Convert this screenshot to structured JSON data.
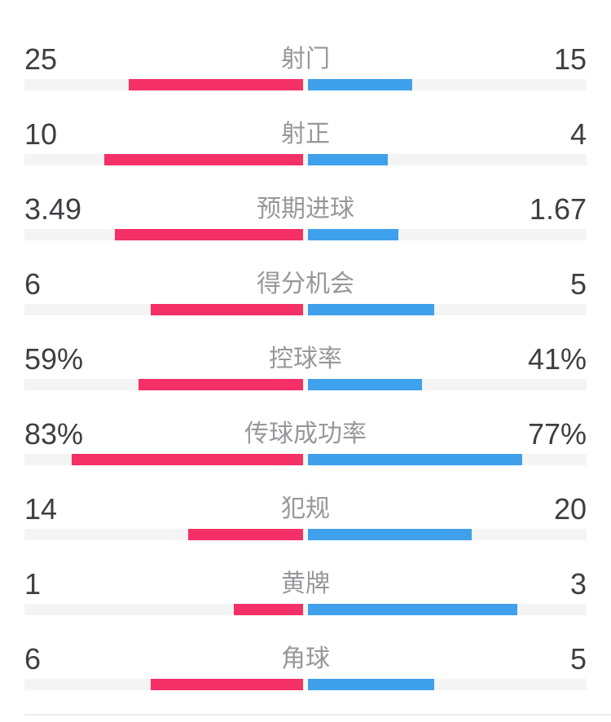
{
  "page": {
    "background": "#ffffff",
    "description": "football match statistics comparison panel"
  },
  "colors": {
    "home_bar": "#f53067",
    "away_bar": "#3fa0ec",
    "track": "#f4f4f5",
    "value_text": "#3e3e43",
    "label_text": "#97979c",
    "divider": "#ededee"
  },
  "chart_data": {
    "type": "bar",
    "orientation": "horizontal-paired",
    "title": "",
    "legend_position": "none",
    "grid": false,
    "categories": [
      "射门",
      "射正",
      "预期进球",
      "得分机会",
      "控球率",
      "传球成功率",
      "犯规",
      "黄牌",
      "角球"
    ],
    "series": [
      {
        "name": "home",
        "color": "#f53067",
        "values": [
          "25",
          "10",
          "3.49",
          "6",
          "59%",
          "83%",
          "14",
          "1",
          "6"
        ]
      },
      {
        "name": "away",
        "color": "#3fa0ec",
        "values": [
          "15",
          "4",
          "1.67",
          "5",
          "41%",
          "77%",
          "20",
          "3",
          "5"
        ]
      }
    ],
    "rows": [
      {
        "label": "射门",
        "home": "25",
        "away": "15",
        "home_ratio": 0.625,
        "away_ratio": 0.375
      },
      {
        "label": "射正",
        "home": "10",
        "away": "4",
        "home_ratio": 0.7143,
        "away_ratio": 0.2857
      },
      {
        "label": "预期进球",
        "home": "3.49",
        "away": "1.67",
        "home_ratio": 0.6764,
        "away_ratio": 0.3236
      },
      {
        "label": "得分机会",
        "home": "6",
        "away": "5",
        "home_ratio": 0.5455,
        "away_ratio": 0.4545
      },
      {
        "label": "控球率",
        "home": "59%",
        "away": "41%",
        "home_ratio": 0.59,
        "away_ratio": 0.41
      },
      {
        "label": "传球成功率",
        "home": "83%",
        "away": "77%",
        "home_ratio": 0.83,
        "away_ratio": 0.77
      },
      {
        "label": "犯规",
        "home": "14",
        "away": "20",
        "home_ratio": 0.4118,
        "away_ratio": 0.5882
      },
      {
        "label": "黄牌",
        "home": "1",
        "away": "3",
        "home_ratio": 0.25,
        "away_ratio": 0.75
      },
      {
        "label": "角球",
        "home": "6",
        "away": "5",
        "home_ratio": 0.5455,
        "away_ratio": 0.4545
      }
    ]
  }
}
